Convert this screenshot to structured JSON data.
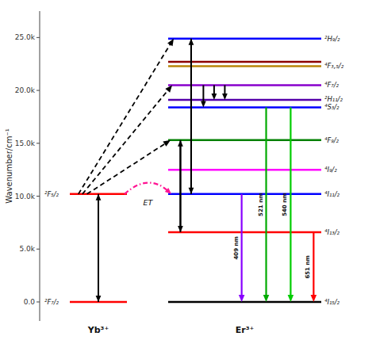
{
  "chart_data": {
    "type": "energy_level",
    "ylabel": "Wavenumber/cm⁻¹",
    "ylim": [
      -1800,
      27500
    ],
    "yticks": [
      {
        "value": 0,
        "label": "0.0"
      },
      {
        "value": 5000,
        "label": "5.0k"
      },
      {
        "value": 10000,
        "label": "10.0k"
      },
      {
        "value": 15000,
        "label": "15.0k"
      },
      {
        "value": 20000,
        "label": "20.0k"
      },
      {
        "value": 25000,
        "label": "25.0k"
      }
    ],
    "groups": [
      {
        "name": "Yb³⁺",
        "levels": [
          0,
          10200
        ],
        "colors": [
          "red",
          "red"
        ],
        "level_labels": [
          "²F₇/₂",
          "²F₅/₂"
        ],
        "arrows": [
          {
            "from": 0,
            "to": 10200
          },
          {
            "from": 10200,
            "to": 0
          }
        ]
      },
      {
        "name": "Er³⁺",
        "levels": [
          0,
          6600,
          10200,
          12500,
          15300,
          18400,
          19100,
          20500,
          22300,
          22700,
          24900
        ],
        "colors": [
          "black",
          "red",
          "blue",
          "magenta",
          "green",
          "blue",
          "#5500aa",
          "#8800cc",
          "#b8860b",
          "#8b0000",
          "blue"
        ],
        "level_labels": [
          "⁴I₁₅/₂",
          "⁴I₁₃/₂",
          "⁴I₁₁/₂",
          "⁴I₉/₂",
          "⁴F₉/₂",
          "⁴S₃/₂",
          "²H₁₁/₂",
          "⁴F₇/₂",
          "⁴F₃,₅/₂",
          null,
          "²H₉/₂"
        ],
        "arrows": [
          {
            "from": 6600,
            "to": 15300
          },
          {
            "from": 15300,
            "to": 6600
          },
          {
            "from": 10200,
            "to": 24900
          },
          {
            "from": 24900,
            "to": 10200
          },
          {
            "from": 20500,
            "to": 18400
          },
          {
            "from": 20500,
            "to": 19100
          },
          {
            "from": 20500,
            "to": 19100
          }
        ],
        "emissions": [
          {
            "from": 10200,
            "to": 0,
            "color": "#8800ff",
            "label": "409 nm"
          },
          {
            "from": 18400,
            "to": 0,
            "color": "#00aa00",
            "label": "521 nm"
          },
          {
            "from": 18400,
            "to": 0,
            "color": "#00cc00",
            "label": "540 nm"
          },
          {
            "from": 6600,
            "to": 0,
            "color": "red",
            "label": "651 nm"
          }
        ]
      }
    ],
    "transfers": [
      {
        "from": 10200,
        "to": 10200,
        "color": "deeppink",
        "line_style": "dashdot",
        "label": "ET"
      },
      {
        "from": 10200,
        "to": 15300,
        "color": "black",
        "line_style": "dashed"
      },
      {
        "from": 10200,
        "to": 20500,
        "color": "black",
        "line_style": "dashed"
      },
      {
        "from": 10200,
        "to": 24900,
        "color": "black",
        "line_style": "dashed"
      }
    ]
  }
}
